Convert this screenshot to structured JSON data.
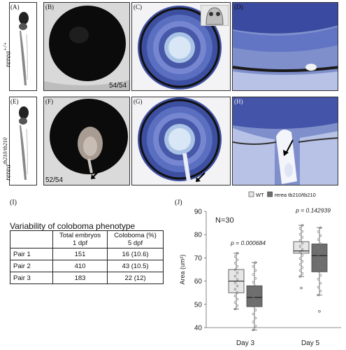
{
  "panels": {
    "A": "(A)",
    "B": "(B)",
    "C": "(C)",
    "D": "(D)",
    "E": "(E)",
    "F": "(F)",
    "G": "(G)",
    "H": "(H)",
    "I": "(I)",
    "J": "(J)"
  },
  "genotypes": {
    "wt": {
      "base": "rerea",
      "sup": "+/+"
    },
    "mut": {
      "base": "rerea",
      "sup": "tb210/tb210"
    }
  },
  "counts": {
    "B": "54/54",
    "F": "52/54"
  },
  "table": {
    "title": "Variability of coloboma phenotype",
    "headers": [
      {
        "line1": "",
        "line2": ""
      },
      {
        "line1": "Total embryos",
        "line2": "1 dpf"
      },
      {
        "line1": "Coloboma  (%)",
        "line2": "5 dpf"
      }
    ],
    "rows": [
      {
        "pair": "Pair 1",
        "total": "151",
        "coloboma": "16  (10.6)"
      },
      {
        "pair": "Pair 2",
        "total": "410",
        "coloboma": "43 (10.5)"
      },
      {
        "pair": "Pair 3",
        "total": "183",
        "coloboma": "22 (12)"
      }
    ]
  },
  "chart_data": {
    "type": "box",
    "legend": [
      {
        "name": "WT",
        "color": "#e6e6e6"
      },
      {
        "name": "rerea tb210/tb210",
        "color": "#6e6e6e"
      }
    ],
    "annotation": "N=30",
    "ylabel": "Area (um²)",
    "ylim": [
      40,
      90
    ],
    "yticks": [
      40,
      50,
      60,
      70,
      80,
      90
    ],
    "categories": [
      "Day 3",
      "Day 5"
    ],
    "pvalues": [
      "p = 0.000684",
      "p = 0.142939"
    ],
    "boxes": [
      {
        "group": "Day 3",
        "series": "WT",
        "min": 48,
        "q1": 55,
        "median": 60,
        "q3": 65,
        "max": 72,
        "outliers": []
      },
      {
        "group": "Day 3",
        "series": "rerea tb210/tb210",
        "min": 39,
        "q1": 49,
        "median": 53,
        "q3": 58,
        "max": 68,
        "outliers": []
      },
      {
        "group": "Day 5",
        "series": "WT",
        "min": 62,
        "q1": 72,
        "median": 73,
        "q3": 77,
        "max": 84,
        "outliers": [
          57
        ]
      },
      {
        "group": "Day 5",
        "series": "rerea tb210/tb210",
        "min": 54,
        "q1": 64,
        "median": 71,
        "q3": 76,
        "max": 83,
        "outliers": [
          47
        ]
      }
    ],
    "grid": true,
    "legend_position": "top"
  }
}
